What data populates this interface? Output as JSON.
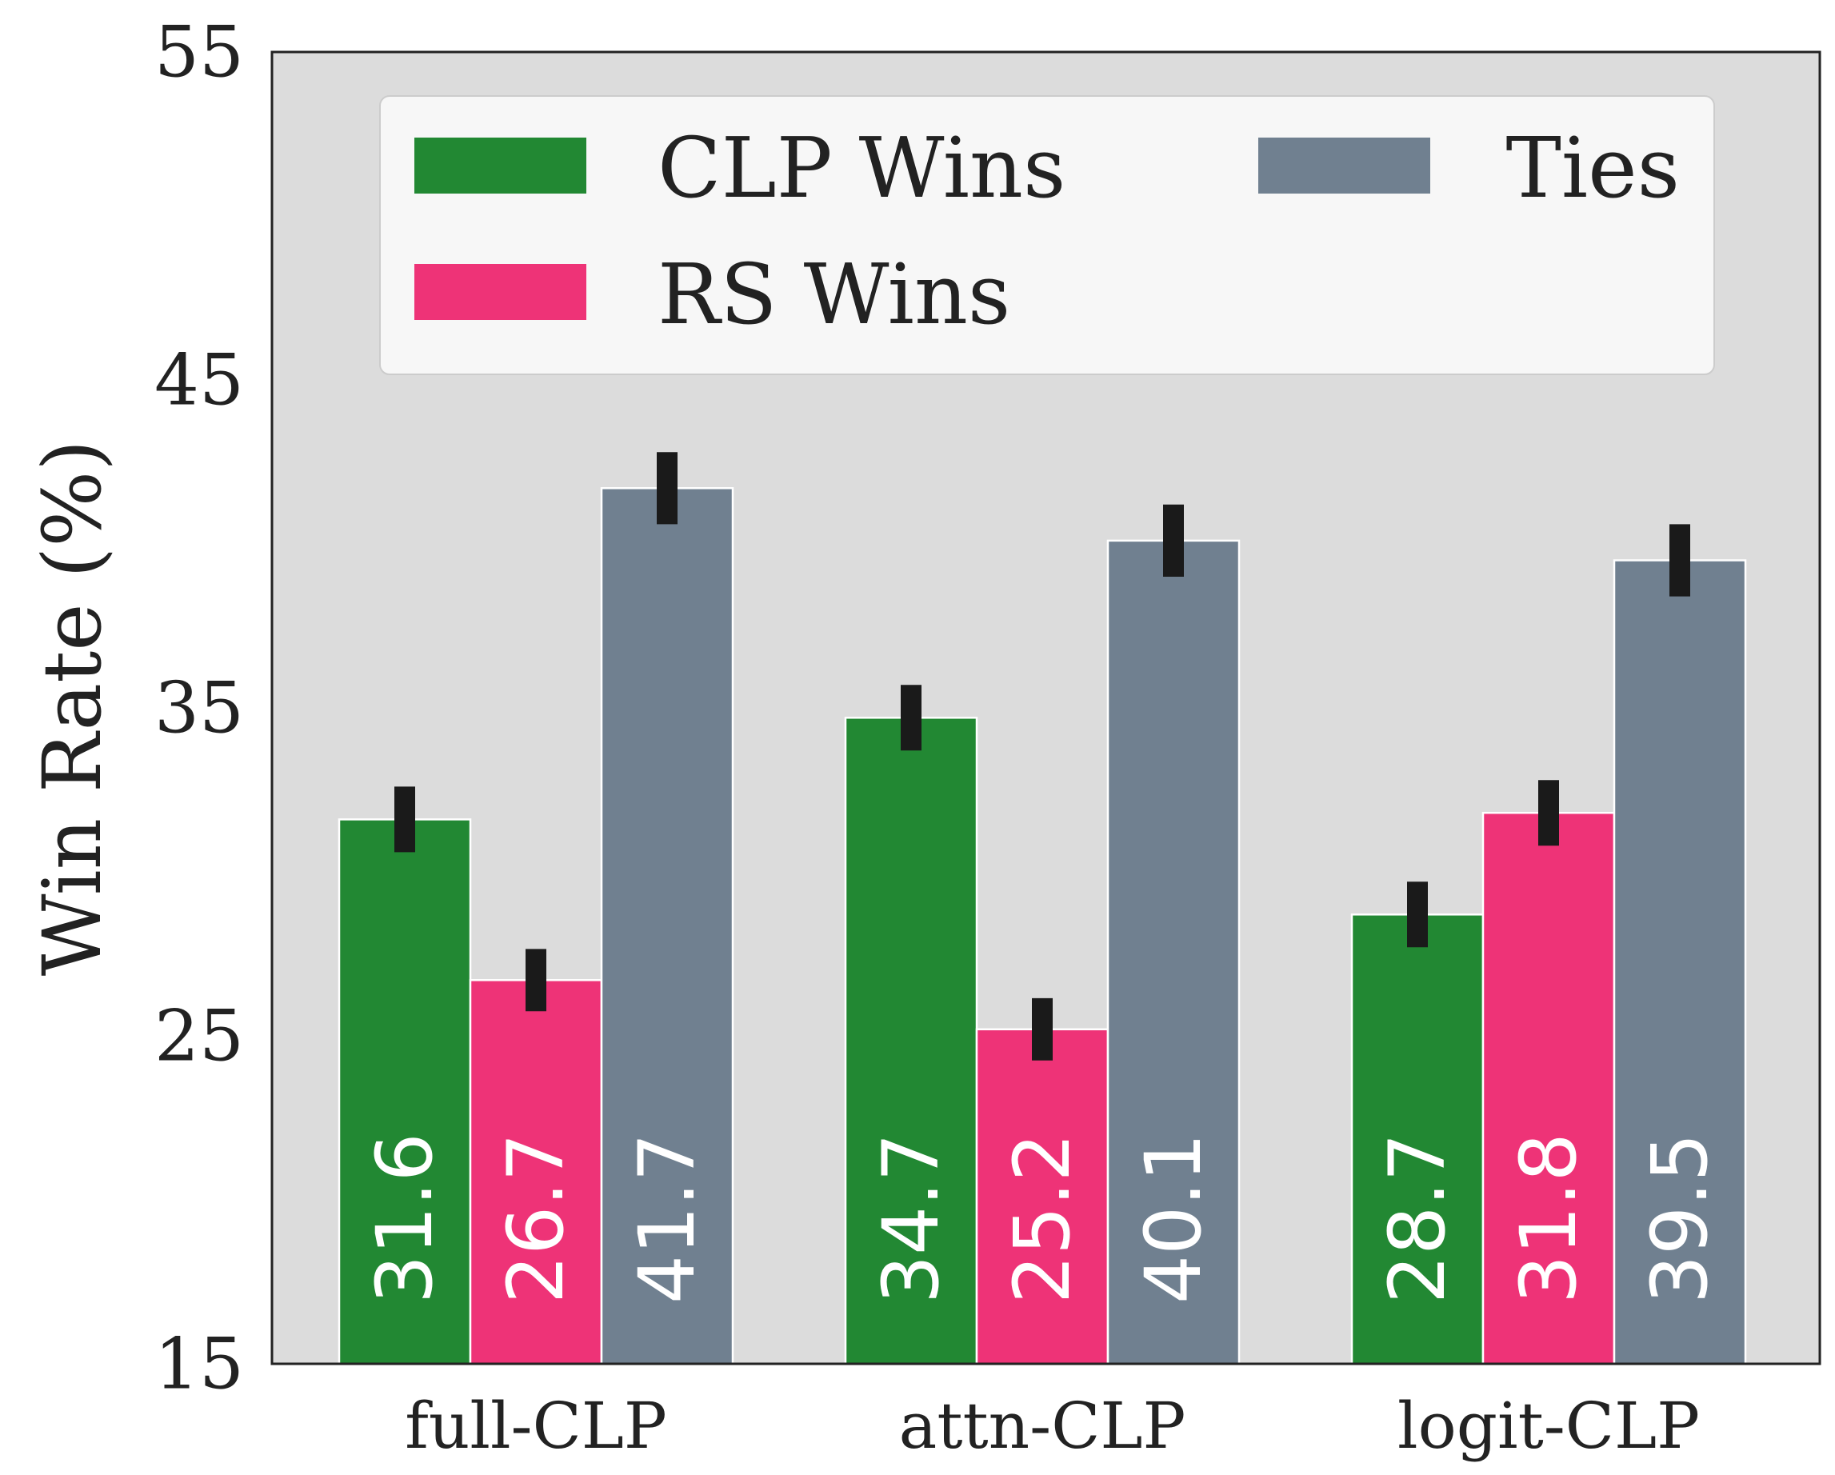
{
  "chart_data": {
    "type": "bar",
    "ylabel": "Win Rate (%)",
    "xlabel": "",
    "ylim": [
      15,
      55
    ],
    "yticks": [
      15,
      25,
      35,
      45,
      55
    ],
    "ytick_labels": [
      "15",
      "25",
      "35",
      "45",
      "55"
    ],
    "categories": [
      "full-CLP",
      "attn-CLP",
      "logit-CLP"
    ],
    "series": [
      {
        "name": "CLP Wins",
        "color": "#228833",
        "values": [
          31.6,
          34.7,
          28.7
        ],
        "labels": [
          "31.6",
          "34.7",
          "28.7"
        ],
        "error": [
          1.0,
          1.0,
          1.0
        ]
      },
      {
        "name": "RS Wins",
        "color": "#ee3377",
        "values": [
          26.7,
          25.2,
          31.8
        ],
        "labels": [
          "26.7",
          "25.2",
          "31.8"
        ],
        "error": [
          0.95,
          0.95,
          1.0
        ]
      },
      {
        "name": "Ties",
        "color": "#708090",
        "values": [
          41.7,
          40.1,
          39.5
        ],
        "labels": [
          "41.7",
          "40.1",
          "39.5"
        ],
        "error": [
          1.1,
          1.1,
          1.1
        ]
      }
    ],
    "legend": {
      "location": "top",
      "columns": 2
    },
    "grid": false,
    "background": "#dcdcdc",
    "legend_background": "#f7f7f7",
    "errorbar_color": "#1a1a1a",
    "text_color": "#222222",
    "label_color": "#ffffff"
  }
}
